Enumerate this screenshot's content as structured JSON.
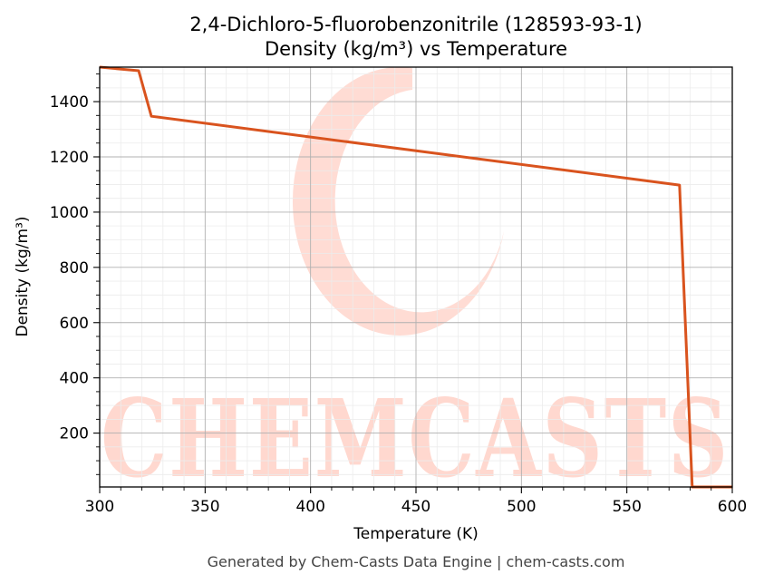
{
  "chart_data": {
    "type": "line",
    "title": "2,4-Dichloro-5-fluorobenzonitrile (128593-93-1)",
    "subtitle": "Density (kg/m³) vs Temperature",
    "xlabel": "Temperature (K)",
    "ylabel": "Density (kg/m³)",
    "xlim": [
      300,
      600
    ],
    "ylim": [
      5,
      1525
    ],
    "x_ticks": [
      300,
      350,
      400,
      450,
      500,
      550,
      600
    ],
    "y_ticks": [
      200,
      400,
      600,
      800,
      1000,
      1200,
      1400
    ],
    "grid": true,
    "series": [
      {
        "color": "#d9531e",
        "x": [
          300,
          318.5,
          324.5,
          575,
          581,
          600
        ],
        "y": [
          1525,
          1512,
          1347,
          1098,
          5,
          5
        ]
      }
    ]
  },
  "watermark": {
    "text": "CHEMCASTS",
    "color": "#ffd8cf"
  },
  "footer": "Generated by Chem-Casts Data Engine | chem-casts.com"
}
